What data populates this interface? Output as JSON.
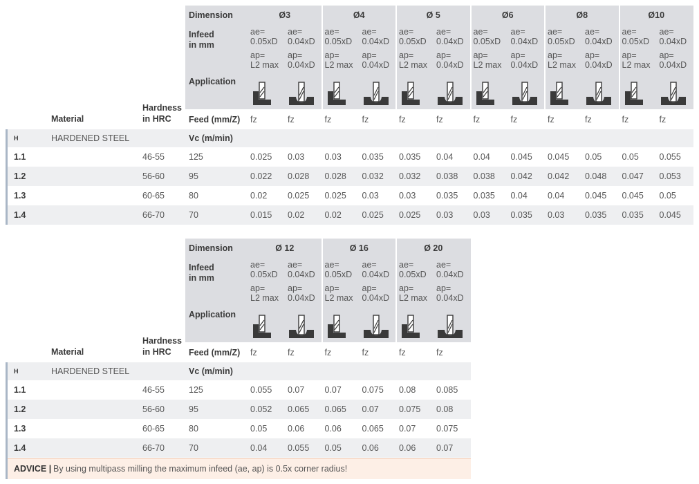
{
  "tables": [
    {
      "header": {
        "dimension_label": "Dimension",
        "infeed_label": [
          "Infeed",
          "in mm"
        ],
        "application_label": "Application",
        "feed_label": "Feed (mm/Z)",
        "vc_label": "Vc (m/min)",
        "material_label": "Material",
        "hardness_label": [
          "Hardness",
          "in HRC"
        ]
      },
      "dimensions": [
        {
          "name": "Ø3",
          "columns": [
            {
              "ae": [
                "ae=",
                "0.05xD"
              ],
              "ap": [
                "ap=",
                "L2 max"
              ],
              "feed": "fz"
            },
            {
              "ae": [
                "ae=",
                "0.04xD"
              ],
              "ap": [
                "ap=",
                "0.04xD"
              ],
              "feed": "fz"
            }
          ]
        },
        {
          "name": "Ø4",
          "columns": [
            {
              "ae": [
                "ae=",
                "0.05xD"
              ],
              "ap": [
                "ap=",
                "L2 max"
              ],
              "feed": "fz"
            },
            {
              "ae": [
                "ae=",
                "0.04xD"
              ],
              "ap": [
                "ap=",
                "0.04xD"
              ],
              "feed": "fz"
            }
          ]
        },
        {
          "name": "Ø 5",
          "columns": [
            {
              "ae": [
                "ae=",
                "0.05xD"
              ],
              "ap": [
                "ap=",
                "L2 max"
              ],
              "feed": "fz"
            },
            {
              "ae": [
                "ae=",
                "0.04xD"
              ],
              "ap": [
                "ap=",
                "0.04xD"
              ],
              "feed": "fz"
            }
          ]
        },
        {
          "name": "Ø6",
          "columns": [
            {
              "ae": [
                "ae=",
                "0.05xD"
              ],
              "ap": [
                "ap=",
                "L2 max"
              ],
              "feed": "fz"
            },
            {
              "ae": [
                "ae=",
                "0.04xD"
              ],
              "ap": [
                "ap=",
                "0.04xD"
              ],
              "feed": "fz"
            }
          ]
        },
        {
          "name": "Ø8",
          "columns": [
            {
              "ae": [
                "ae=",
                "0.05xD"
              ],
              "ap": [
                "ap=",
                "L2 max"
              ],
              "feed": "fz"
            },
            {
              "ae": [
                "ae=",
                "0.04xD"
              ],
              "ap": [
                "ap=",
                "0.04xD"
              ],
              "feed": "fz"
            }
          ]
        },
        {
          "name": "Ø10",
          "columns": [
            {
              "ae": [
                "ae=",
                "0.05xD"
              ],
              "ap": [
                "ap=",
                "L2 max"
              ],
              "feed": "fz"
            },
            {
              "ae": [
                "ae=",
                "0.04xD"
              ],
              "ap": [
                "ap=",
                "0.04xD"
              ],
              "feed": "fz"
            }
          ]
        }
      ],
      "group": {
        "code": "H",
        "name": "HARDENED STEEL"
      },
      "rows": [
        {
          "id": "1.1",
          "hardness": "46-55",
          "vc": "125",
          "fz": [
            "0.025",
            "0.03",
            "0.03",
            "0.035",
            "0.035",
            "0.04",
            "0.04",
            "0.045",
            "0.045",
            "0.05",
            "0.05",
            "0.055"
          ]
        },
        {
          "id": "1.2",
          "hardness": "56-60",
          "vc": "95",
          "fz": [
            "0.022",
            "0.028",
            "0.028",
            "0.032",
            "0.032",
            "0.038",
            "0.038",
            "0.042",
            "0.042",
            "0.048",
            "0.047",
            "0.053"
          ]
        },
        {
          "id": "1.3",
          "hardness": "60-65",
          "vc": "80",
          "fz": [
            "0.02",
            "0.025",
            "0.025",
            "0.03",
            "0.03",
            "0.035",
            "0.035",
            "0.04",
            "0.04",
            "0.045",
            "0.045",
            "0.05"
          ]
        },
        {
          "id": "1.4",
          "hardness": "66-70",
          "vc": "70",
          "fz": [
            "0.015",
            "0.02",
            "0.02",
            "0.025",
            "0.025",
            "0.03",
            "0.03",
            "0.035",
            "0.03",
            "0.035",
            "0.035",
            "0.045"
          ]
        }
      ]
    },
    {
      "header": {
        "dimension_label": "Dimension",
        "infeed_label": [
          "Infeed",
          "in mm"
        ],
        "application_label": "Application",
        "feed_label": "Feed (mm/Z)",
        "vc_label": "Vc (m/min)",
        "material_label": "Material",
        "hardness_label": [
          "Hardness",
          "in HRC"
        ]
      },
      "dimensions": [
        {
          "name": "Ø 12",
          "columns": [
            {
              "ae": [
                "ae=",
                "0.05xD"
              ],
              "ap": [
                "ap=",
                "L2 max"
              ],
              "feed": "fz"
            },
            {
              "ae": [
                "ae=",
                "0.04xD"
              ],
              "ap": [
                "ap=",
                "0.04xD"
              ],
              "feed": "fz"
            }
          ]
        },
        {
          "name": "Ø 16",
          "columns": [
            {
              "ae": [
                "ae=",
                "0.05xD"
              ],
              "ap": [
                "ap=",
                "L2 max"
              ],
              "feed": "fz"
            },
            {
              "ae": [
                "ae=",
                "0.04xD"
              ],
              "ap": [
                "ap=",
                "0.04xD"
              ],
              "feed": "fz"
            }
          ]
        },
        {
          "name": "Ø 20",
          "columns": [
            {
              "ae": [
                "ae=",
                "0.05xD"
              ],
              "ap": [
                "ap=",
                "L2 max"
              ],
              "feed": "fz"
            },
            {
              "ae": [
                "ae=",
                "0.04xD"
              ],
              "ap": [
                "ap=",
                "0.04xD"
              ],
              "feed": "fz"
            }
          ]
        }
      ],
      "group": {
        "code": "H",
        "name": "HARDENED STEEL"
      },
      "rows": [
        {
          "id": "1.1",
          "hardness": "46-55",
          "vc": "125",
          "fz": [
            "0.055",
            "0.07",
            "0.07",
            "0.075",
            "0.08",
            "0.085"
          ]
        },
        {
          "id": "1.2",
          "hardness": "56-60",
          "vc": "95",
          "fz": [
            "0.052",
            "0.065",
            "0.065",
            "0.07",
            "0.075",
            "0.08"
          ]
        },
        {
          "id": "1.3",
          "hardness": "60-65",
          "vc": "80",
          "fz": [
            "0.05",
            "0.06",
            "0.06",
            "0.065",
            "0.07",
            "0.075"
          ]
        },
        {
          "id": "1.4",
          "hardness": "66-70",
          "vc": "70",
          "fz": [
            "0.04",
            "0.055",
            "0.05",
            "0.06",
            "0.06",
            "0.07"
          ]
        }
      ]
    }
  ],
  "advice": {
    "label": "ADVICE |",
    "text": "By using multipass milling the maximum infeed (ae, ap) is 0.5x corner radius!"
  }
}
